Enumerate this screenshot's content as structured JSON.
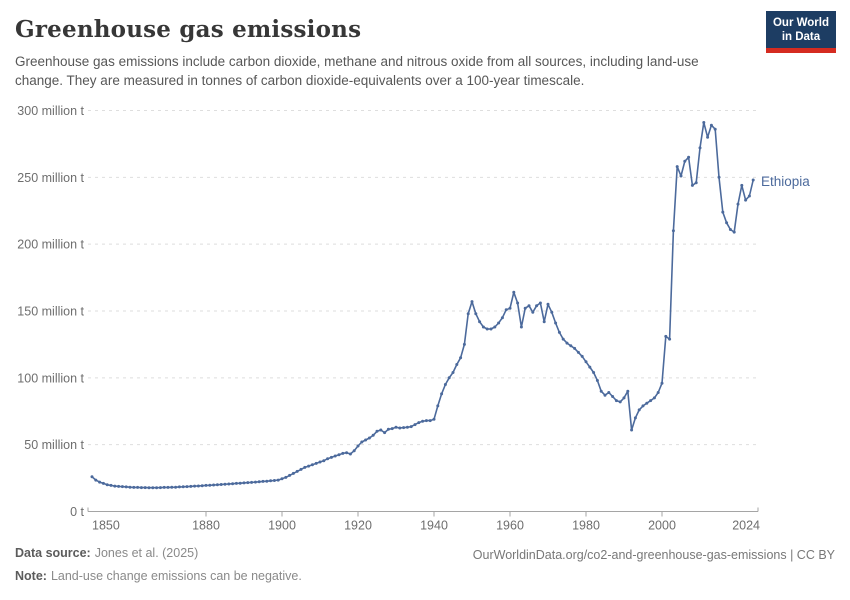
{
  "header": {
    "title": "Greenhouse gas emissions",
    "subtitle": "Greenhouse gas emissions include carbon dioxide, methane and nitrous oxide from all sources, including land-use change. They are measured in tonnes of carbon dioxide-equivalents over a 100-year timescale."
  },
  "logo": {
    "line1": "Our World",
    "line2": "in Data",
    "bg_color": "#1d3d63",
    "accent_color": "#d52b20"
  },
  "chart_data": {
    "type": "line",
    "title": "Greenhouse gas emissions",
    "xlabel": "",
    "ylabel": "",
    "values_unit": "million tonnes of carbon dioxide-equivalents",
    "xlim": [
      1850,
      2024
    ],
    "ylim": [
      0,
      300
    ],
    "grid": "horizontal-dashed",
    "legend_position": "end-of-line-label",
    "xticks": {
      "values": [
        1850,
        1880,
        1900,
        1920,
        1940,
        1960,
        1980,
        2000,
        2024
      ],
      "labels": [
        "1850",
        "1880",
        "1900",
        "1920",
        "1940",
        "1960",
        "1980",
        "2000",
        "2024"
      ]
    },
    "yticks": {
      "values": [
        0,
        50,
        100,
        150,
        200,
        250,
        300
      ],
      "labels": [
        "0 t",
        "50 million t",
        "100 million t",
        "150 million t",
        "200 million t",
        "250 million t",
        "300 million t"
      ]
    },
    "x": [
      1850,
      1851,
      1852,
      1853,
      1854,
      1855,
      1856,
      1857,
      1858,
      1859,
      1860,
      1861,
      1862,
      1863,
      1864,
      1865,
      1866,
      1867,
      1868,
      1869,
      1870,
      1871,
      1872,
      1873,
      1874,
      1875,
      1876,
      1877,
      1878,
      1879,
      1880,
      1881,
      1882,
      1883,
      1884,
      1885,
      1886,
      1887,
      1888,
      1889,
      1890,
      1891,
      1892,
      1893,
      1894,
      1895,
      1896,
      1897,
      1898,
      1899,
      1900,
      1901,
      1902,
      1903,
      1904,
      1905,
      1906,
      1907,
      1908,
      1909,
      1910,
      1911,
      1912,
      1913,
      1914,
      1915,
      1916,
      1917,
      1918,
      1919,
      1920,
      1921,
      1922,
      1923,
      1924,
      1925,
      1926,
      1927,
      1928,
      1929,
      1930,
      1931,
      1932,
      1933,
      1934,
      1935,
      1936,
      1937,
      1938,
      1939,
      1940,
      1941,
      1942,
      1943,
      1944,
      1945,
      1946,
      1947,
      1948,
      1949,
      1950,
      1951,
      1952,
      1953,
      1954,
      1955,
      1956,
      1957,
      1958,
      1959,
      1960,
      1961,
      1962,
      1963,
      1964,
      1965,
      1966,
      1967,
      1968,
      1969,
      1970,
      1971,
      1972,
      1973,
      1974,
      1975,
      1976,
      1977,
      1978,
      1979,
      1980,
      1981,
      1982,
      1983,
      1984,
      1985,
      1986,
      1987,
      1988,
      1989,
      1990,
      1991,
      1992,
      1993,
      1994,
      1995,
      1996,
      1997,
      1998,
      1999,
      2000,
      2001,
      2002,
      2003,
      2004,
      2005,
      2006,
      2007,
      2008,
      2009,
      2010,
      2011,
      2012,
      2013,
      2014,
      2015,
      2016,
      2017,
      2018,
      2019,
      2020,
      2021,
      2022,
      2023,
      2024
    ],
    "series": [
      {
        "name": "Ethiopia",
        "color": "#4c6a9c",
        "values": [
          26,
          23.5,
          22,
          21,
          20,
          19.5,
          19,
          18.8,
          18.6,
          18.4,
          18.2,
          18,
          18,
          17.9,
          17.9,
          17.8,
          17.8,
          17.8,
          17.9,
          18,
          18,
          18.1,
          18.2,
          18.4,
          18.5,
          18.6,
          18.8,
          19,
          19.1,
          19.3,
          19.5,
          19.6,
          19.8,
          20,
          20.2,
          20.4,
          20.6,
          20.8,
          21,
          21.2,
          21.4,
          21.6,
          21.8,
          22,
          22.2,
          22.5,
          22.7,
          23,
          23.2,
          23.5,
          24.5,
          25.5,
          27,
          28.5,
          30,
          31.5,
          33,
          34,
          35,
          36,
          37,
          38,
          39.5,
          40.5,
          41.5,
          42.5,
          43.5,
          44,
          43,
          45.5,
          49,
          52,
          53.5,
          55,
          57,
          60,
          61,
          59,
          61.5,
          62,
          63,
          62.5,
          62.8,
          63,
          63.5,
          65,
          66.5,
          67.5,
          68,
          68,
          69,
          79,
          88,
          95,
          100,
          104,
          110,
          115,
          125,
          148,
          157,
          148,
          142,
          138,
          136.5,
          136.5,
          138,
          141,
          145,
          151,
          152,
          164,
          156,
          138,
          152,
          154,
          149,
          154,
          156,
          142,
          155,
          149,
          141,
          134,
          129,
          126,
          124,
          122,
          119,
          116,
          112,
          108,
          104,
          98,
          90,
          87,
          89,
          86,
          83,
          82,
          85,
          90,
          61,
          70,
          76,
          79,
          81,
          83,
          85,
          89,
          96,
          131,
          129,
          210,
          258,
          251,
          262,
          265,
          244,
          246,
          272,
          291,
          280,
          289,
          286,
          250,
          224,
          216,
          211,
          209,
          230,
          244,
          233,
          236,
          248
        ]
      }
    ]
  },
  "footer": {
    "data_source_label": "Data source:",
    "data_source_value": "Jones et al. (2025)",
    "note_label": "Note:",
    "note_value": "Land-use change emissions can be negative.",
    "link": "OurWorldinData.org/co2-and-greenhouse-gas-emissions | CC BY"
  }
}
